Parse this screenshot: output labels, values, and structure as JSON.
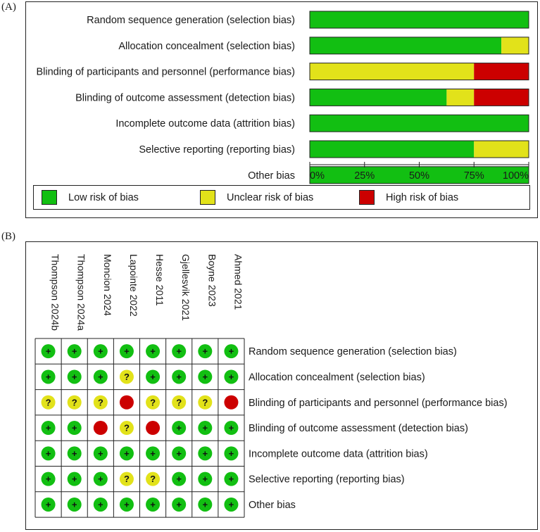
{
  "panel_a": {
    "label": "(A)"
  },
  "panel_b": {
    "label": "(B)"
  },
  "colors": {
    "low": "#12bf12",
    "unclear": "#e2e21a",
    "high": "#cc0000"
  },
  "legend": {
    "low": "Low risk of bias",
    "unclear": "Unclear risk of bias",
    "high": "High risk of bias"
  },
  "chart_data": [
    {
      "type": "bar",
      "orientation": "horizontal-stacked",
      "categories": [
        "Random sequence generation (selection bias)",
        "Allocation concealment (selection bias)",
        "Blinding of participants and personnel (performance bias)",
        "Blinding of outcome assessment (detection bias)",
        "Incomplete outcome data (attrition bias)",
        "Selective reporting (reporting bias)",
        "Other bias"
      ],
      "series": [
        {
          "name": "Low risk of bias",
          "color": "#12bf12",
          "values": [
            100,
            87.5,
            0,
            62.5,
            100,
            75,
            100
          ]
        },
        {
          "name": "Unclear risk of bias",
          "color": "#e2e21a",
          "values": [
            0,
            12.5,
            75,
            12.5,
            0,
            25,
            0
          ]
        },
        {
          "name": "High risk of bias",
          "color": "#cc0000",
          "values": [
            0,
            0,
            25,
            25,
            0,
            0,
            0
          ]
        }
      ],
      "xlim": [
        0,
        100
      ],
      "xticks": [
        "0%",
        "25%",
        "50%",
        "75%",
        "100%"
      ]
    },
    {
      "type": "table",
      "studies": [
        "Thompson 2024b",
        "Thompson 2024a",
        "Moncion 2024",
        "Lapointe 2022",
        "Hesse 2011",
        "Gjellesvik 2021",
        "Boyne 2023",
        "Ahmed 2021"
      ],
      "domains": [
        "Random sequence generation (selection bias)",
        "Allocation concealment (selection bias)",
        "Blinding of participants and personnel (performance bias)",
        "Blinding of outcome assessment (detection bias)",
        "Incomplete outcome data (attrition bias)",
        "Selective reporting (reporting bias)",
        "Other bias"
      ],
      "symbols": {
        "low": "+",
        "unclear": "?",
        "high": ""
      },
      "judgements": [
        [
          "low",
          "low",
          "low",
          "low",
          "low",
          "low",
          "low",
          "low"
        ],
        [
          "low",
          "low",
          "low",
          "unclear",
          "low",
          "low",
          "low",
          "low"
        ],
        [
          "unclear",
          "unclear",
          "unclear",
          "high",
          "unclear",
          "unclear",
          "unclear",
          "high"
        ],
        [
          "low",
          "low",
          "high",
          "unclear",
          "high",
          "low",
          "low",
          "low"
        ],
        [
          "low",
          "low",
          "low",
          "low",
          "low",
          "low",
          "low",
          "low"
        ],
        [
          "low",
          "low",
          "low",
          "unclear",
          "unclear",
          "low",
          "low",
          "low"
        ],
        [
          "low",
          "low",
          "low",
          "low",
          "low",
          "low",
          "low",
          "low"
        ]
      ]
    }
  ]
}
